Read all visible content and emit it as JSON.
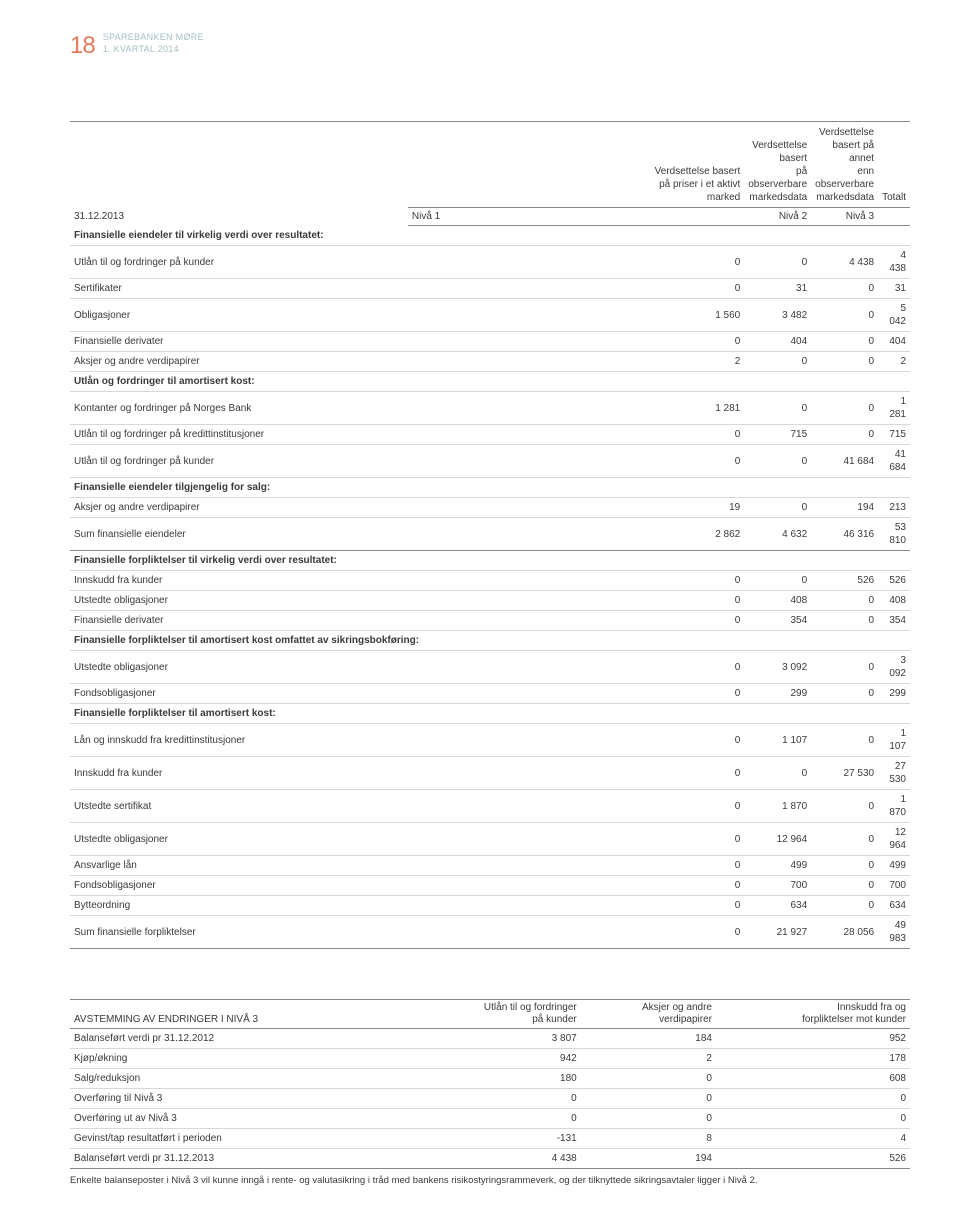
{
  "header": {
    "page_number": "18",
    "company": "SPAREBANKEN MØRE",
    "period": "1. KVARTAL 2014"
  },
  "table1": {
    "date": "31.12.2013",
    "col1_l1": "Verdsettelse basert",
    "col1_l2": "på priser i et aktivt",
    "col1_l3": "marked",
    "col2_l1": "Verdsettelse basert",
    "col2_l2": "på observerbare",
    "col2_l3": "markedsdata",
    "col3_l1": "Verdsettelse",
    "col3_l2": "basert på annet",
    "col3_l3": "enn observerbare",
    "col3_l4": "markedsdata",
    "col4": "Totalt",
    "n1": "Nivå 1",
    "n2": "Nivå 2",
    "n3": "Nivå 3",
    "sections": {
      "s1": "Finansielle eiendeler til virkelig verdi over resultatet:",
      "s2": "Utlån og fordringer til amortisert kost:",
      "s3": "Finansielle eiendeler tilgjengelig for salg:",
      "s4": "Finansielle forpliktelser til virkelig verdi over resultatet:",
      "s5": "Finansielle forpliktelser til amortisert kost omfattet av sikringsbokføring:",
      "s6": "Finansielle forpliktelser til amortisert kost:"
    },
    "rows": {
      "r1": {
        "label": "Utlån til og fordringer på kunder",
        "c1": "0",
        "c2": "0",
        "c3": "4 438",
        "c4": "4 438"
      },
      "r2": {
        "label": "Sertifikater",
        "c1": "0",
        "c2": "31",
        "c3": "0",
        "c4": "31"
      },
      "r3": {
        "label": "Obligasjoner",
        "c1": "1 560",
        "c2": "3 482",
        "c3": "0",
        "c4": "5 042"
      },
      "r4": {
        "label": "Finansielle derivater",
        "c1": "0",
        "c2": "404",
        "c3": "0",
        "c4": "404"
      },
      "r5": {
        "label": "Aksjer og andre verdipapirer",
        "c1": "2",
        "c2": "0",
        "c3": "0",
        "c4": "2"
      },
      "r6": {
        "label": "Kontanter og fordringer på Norges Bank",
        "c1": "1 281",
        "c2": "0",
        "c3": "0",
        "c4": "1 281"
      },
      "r7": {
        "label": "Utlån til og fordringer på kredittinstitusjoner",
        "c1": "0",
        "c2": "715",
        "c3": "0",
        "c4": "715"
      },
      "r8": {
        "label": "Utlån til og fordringer på kunder",
        "c1": "0",
        "c2": "0",
        "c3": "41 684",
        "c4": "41 684"
      },
      "r9": {
        "label": "Aksjer og andre verdipapirer",
        "c1": "19",
        "c2": "0",
        "c3": "194",
        "c4": "213"
      },
      "sum1": {
        "label": "Sum finansielle eiendeler",
        "c1": "2 862",
        "c2": "4 632",
        "c3": "46 316",
        "c4": "53 810"
      },
      "r10": {
        "label": "Innskudd fra kunder",
        "c1": "0",
        "c2": "0",
        "c3": "526",
        "c4": "526"
      },
      "r11": {
        "label": "Utstedte obligasjoner",
        "c1": "0",
        "c2": "408",
        "c3": "0",
        "c4": "408"
      },
      "r12": {
        "label": "Finansielle derivater",
        "c1": "0",
        "c2": "354",
        "c3": "0",
        "c4": "354"
      },
      "r13": {
        "label": "Utstedte obligasjoner",
        "c1": "0",
        "c2": "3 092",
        "c3": "0",
        "c4": "3 092"
      },
      "r14": {
        "label": "Fondsobligasjoner",
        "c1": "0",
        "c2": "299",
        "c3": "0",
        "c4": "299"
      },
      "r15": {
        "label": "Lån og innskudd fra kredittinstitusjoner",
        "c1": "0",
        "c2": "1 107",
        "c3": "0",
        "c4": "1 107"
      },
      "r16": {
        "label": "Innskudd fra kunder",
        "c1": "0",
        "c2": "0",
        "c3": "27 530",
        "c4": "27 530"
      },
      "r17": {
        "label": "Utstedte sertifikat",
        "c1": "0",
        "c2": "1 870",
        "c3": "0",
        "c4": "1 870"
      },
      "r18": {
        "label": "Utstedte obligasjoner",
        "c1": "0",
        "c2": "12 964",
        "c3": "0",
        "c4": "12 964"
      },
      "r19": {
        "label": "Ansvarlige lån",
        "c1": "0",
        "c2": "499",
        "c3": "0",
        "c4": "499"
      },
      "r20": {
        "label": "Fondsobligasjoner",
        "c1": "0",
        "c2": "700",
        "c3": "0",
        "c4": "700"
      },
      "r21": {
        "label": "Bytteordning",
        "c1": "0",
        "c2": "634",
        "c3": "0",
        "c4": "634"
      },
      "sum2": {
        "label": "Sum finansielle forpliktelser",
        "c1": "0",
        "c2": "21 927",
        "c3": "28 056",
        "c4": "49 983"
      }
    }
  },
  "table2": {
    "title": "AVSTEMMING AV ENDRINGER I NIVÅ 3",
    "h1_l1": "Utlån til og fordringer",
    "h1_l2": "på kunder",
    "h2_l1": "Aksjer og andre",
    "h2_l2": "verdipapirer",
    "h3_l1": "Innskudd fra og",
    "h3_l2": "forpliktelser mot kunder",
    "rows": {
      "r1": {
        "label": "Balanseført verdi pr 31.12.2012",
        "c1": "3 807",
        "c2": "184",
        "c3": "952"
      },
      "r2": {
        "label": "Kjøp/økning",
        "c1": "942",
        "c2": "2",
        "c3": "178"
      },
      "r3": {
        "label": "Salg/reduksjon",
        "c1": "180",
        "c2": "0",
        "c3": "608"
      },
      "r4": {
        "label": "Overføring til Nivå 3",
        "c1": "0",
        "c2": "0",
        "c3": "0"
      },
      "r5": {
        "label": "Overføring ut av Nivå 3",
        "c1": "0",
        "c2": "0",
        "c3": "0"
      },
      "r6": {
        "label": "Gevinst/tap resultatført i perioden",
        "c1": "-131",
        "c2": "8",
        "c3": "4"
      },
      "r7": {
        "label": "Balanseført verdi pr 31.12.2013",
        "c1": "4 438",
        "c2": "194",
        "c3": "526"
      }
    }
  },
  "footnote": "Enkelte balanseposter i Nivå 3 vil kunne inngå i rente- og valutasikring i tråd med bankens risikostyringsrammeverk, og der tilknyttede sikringsavtaler ligger i Nivå 2."
}
